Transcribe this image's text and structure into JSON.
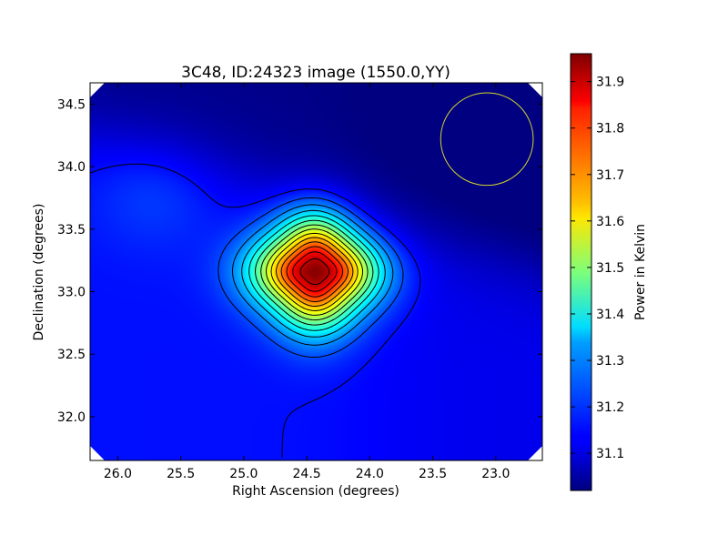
{
  "chart_data": {
    "type": "heatmap",
    "title": "3C48, ID:24323 image (1550.0,YY)",
    "xlabel": "Right Ascension (degrees)",
    "ylabel": "Declination (degrees)",
    "colorbar_label": "Power in Kelvin",
    "colormap": "jet",
    "xlim": [
      26.22,
      22.63
    ],
    "ylim": [
      31.65,
      34.67
    ],
    "x_ticks": [
      26.0,
      25.5,
      25.0,
      24.5,
      24.0,
      23.5,
      23.0
    ],
    "x_tick_labels": [
      "26.0",
      "25.5",
      "25.0",
      "24.5",
      "24.0",
      "23.5",
      "23.0"
    ],
    "y_ticks": [
      32.0,
      32.5,
      33.0,
      33.5,
      34.0,
      34.5
    ],
    "y_tick_labels": [
      "32.0",
      "32.5",
      "33.0",
      "33.5",
      "34.0",
      "34.5"
    ],
    "colorbar_range": [
      31.02,
      31.96
    ],
    "colorbar_ticks": [
      31.1,
      31.2,
      31.3,
      31.4,
      31.5,
      31.6,
      31.7,
      31.8,
      31.9
    ],
    "colorbar_tick_labels": [
      "31.1",
      "31.2",
      "31.3",
      "31.4",
      "31.5",
      "31.6",
      "31.7",
      "31.8",
      "31.9"
    ],
    "peak": {
      "ra": 24.43,
      "dec": 33.16,
      "value": 31.96
    },
    "background_value": 31.15,
    "contour_count": 14,
    "beam_circle": {
      "ra": 23.07,
      "dec": 34.22,
      "radius_deg": 0.37,
      "color": "#d6d62a"
    },
    "grid": false,
    "legend": "none"
  }
}
